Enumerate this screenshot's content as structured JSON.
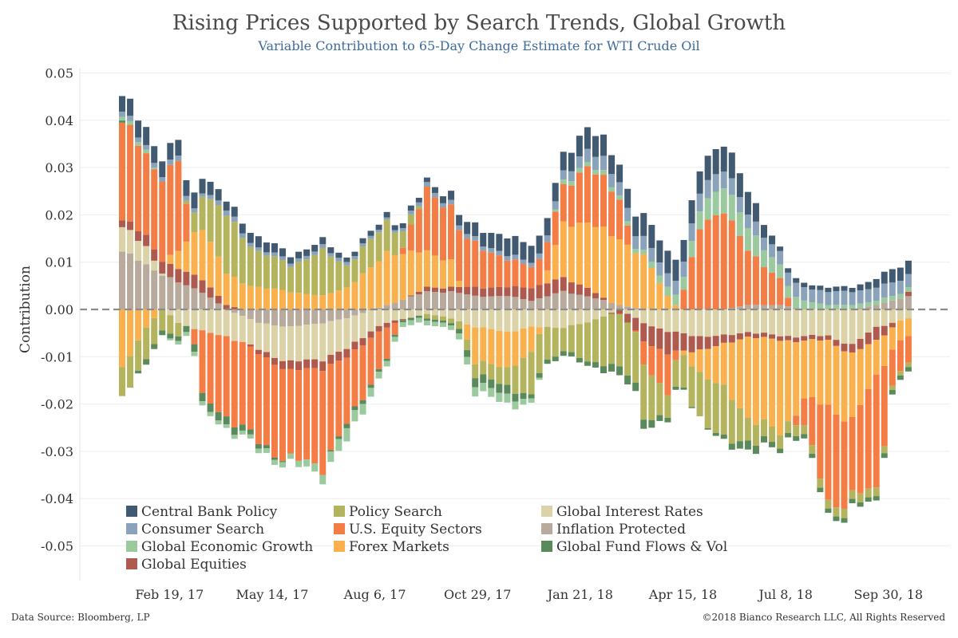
{
  "chart_data": {
    "type": "bar",
    "stacked": true,
    "title": "Rising Prices Supported by Search Trends, Global Growth",
    "subtitle": "Variable Contribution to 65-Day Change Estimate for WTI Crude Oil",
    "ylabel": "Contribution",
    "ylim": [
      -0.055,
      0.05
    ],
    "yticks": [
      0.05,
      0.04,
      0.03,
      0.02,
      0.01,
      0.0,
      -0.01,
      -0.02,
      -0.03,
      -0.04,
      -0.05
    ],
    "ytick_labels": [
      "0.05",
      "0.04",
      "0.03",
      "0.02",
      "0.01",
      "0.00",
      "-0.01",
      "-0.02",
      "-0.03",
      "-0.04",
      "-0.05"
    ],
    "xtick_labels": [
      "Feb 19, 17",
      "May 14, 17",
      "Aug 6, 17",
      "Oct 29, 17",
      "Jan 21, 18",
      "Apr 15, 18",
      "Jul 8, 18",
      "Sep 30, 18"
    ],
    "xtick_positions": [
      6.3,
      19.1,
      31.9,
      44.7,
      57.5,
      70.3,
      83.1,
      95.9
    ],
    "n_bars": 99,
    "grid": "horizontal",
    "zero_line": "dashed",
    "legend_position": "bottom-left",
    "series": [
      {
        "name": "Central Bank Policy",
        "color": "#415a72"
      },
      {
        "name": "Consumer Search",
        "color": "#8aa3bb"
      },
      {
        "name": "Global Economic Growth",
        "color": "#9bca9f"
      },
      {
        "name": "Global Fund Flows & Vol",
        "color": "#5a8a5c"
      },
      {
        "name": "Policy Search",
        "color": "#b5b45e"
      },
      {
        "name": "U.S. Equity Sectors",
        "color": "#f47c45"
      },
      {
        "name": "Forex Markets",
        "color": "#f9b04d"
      },
      {
        "name": "Global Equities",
        "color": "#ae5a4e"
      },
      {
        "name": "Global Interest Rates",
        "color": "#dbd3a7"
      },
      {
        "name": "Inflation Protected",
        "color": "#b8ab9d"
      }
    ],
    "stack_order": [
      9,
      8,
      7,
      6,
      5,
      4,
      3,
      2,
      1,
      0
    ],
    "anchors": [
      {
        "i": 0,
        "v": [
          0.0035,
          0.0012,
          0.0008,
          0.0005,
          -0.0065,
          0.022,
          -0.013,
          0.0015,
          0.0055,
          0.013
        ]
      },
      {
        "i": 3,
        "v": [
          0.004,
          0.001,
          0.0008,
          -0.0012,
          -0.007,
          0.018,
          -0.004,
          0.0025,
          0.004,
          0.01
        ]
      },
      {
        "i": 7,
        "v": [
          0.0035,
          0.0012,
          -0.0008,
          -0.001,
          -0.003,
          0.02,
          0.004,
          0.003,
          -0.003,
          0.006
        ]
      },
      {
        "i": 10,
        "v": [
          0.0035,
          0.0008,
          -0.001,
          -0.002,
          0.008,
          -0.015,
          0.012,
          0.003,
          -0.005,
          0.004
        ]
      },
      {
        "i": 13,
        "v": [
          0.002,
          0.0012,
          -0.0008,
          -0.0018,
          0.013,
          -0.018,
          0.007,
          0.001,
          -0.006,
          0.0
        ]
      },
      {
        "i": 17,
        "v": [
          0.0025,
          0.0008,
          -0.001,
          -0.001,
          0.008,
          -0.02,
          0.005,
          -0.001,
          -0.006,
          -0.003
        ]
      },
      {
        "i": 21,
        "v": [
          0.0015,
          0.0008,
          -0.0012,
          0.0,
          0.006,
          -0.02,
          0.004,
          -0.002,
          -0.008,
          -0.004
        ]
      },
      {
        "i": 25,
        "v": [
          0.0015,
          0.0008,
          -0.002,
          0.0,
          0.01,
          -0.022,
          0.003,
          -0.002,
          -0.008,
          -0.003
        ]
      },
      {
        "i": 28,
        "v": [
          0.001,
          0.0008,
          -0.003,
          -0.001,
          0.005,
          -0.015,
          0.005,
          -0.002,
          -0.007,
          -0.002
        ]
      },
      {
        "i": 33,
        "v": [
          0.0012,
          0.0005,
          -0.0012,
          -0.0005,
          0.007,
          -0.007,
          0.012,
          -0.001,
          -0.003,
          0.001
        ]
      },
      {
        "i": 38,
        "v": [
          0.001,
          0.001,
          -0.001,
          -0.0005,
          -0.001,
          0.014,
          0.008,
          0.001,
          -0.001,
          0.004
        ]
      },
      {
        "i": 41,
        "v": [
          0.002,
          0.001,
          -0.001,
          -0.0005,
          -0.001,
          0.012,
          0.006,
          0.001,
          -0.002,
          0.004
        ]
      },
      {
        "i": 44,
        "v": [
          0.003,
          0.001,
          -0.002,
          -0.002,
          -0.003,
          0.01,
          -0.008,
          0.002,
          -0.004,
          0.003
        ]
      },
      {
        "i": 48,
        "v": [
          0.004,
          0.001,
          -0.002,
          -0.002,
          -0.004,
          0.006,
          -0.008,
          0.002,
          -0.005,
          0.003
        ]
      },
      {
        "i": 51,
        "v": [
          0.004,
          0.001,
          -0.001,
          -0.001,
          -0.01,
          0.005,
          -0.006,
          0.003,
          -0.004,
          0.002
        ]
      },
      {
        "i": 55,
        "v": [
          0.004,
          0.002,
          0.001,
          -0.001,
          -0.005,
          0.008,
          0.012,
          0.003,
          -0.004,
          0.004
        ]
      },
      {
        "i": 58,
        "v": [
          0.005,
          0.003,
          0.001,
          -0.001,
          -0.009,
          0.013,
          0.015,
          0.002,
          -0.003,
          0.003
        ]
      },
      {
        "i": 62,
        "v": [
          0.004,
          0.003,
          0.001,
          -0.002,
          -0.012,
          0.009,
          0.015,
          -0.001,
          0.0,
          0.001
        ]
      },
      {
        "i": 65,
        "v": [
          0.005,
          0.003,
          0.001,
          -0.002,
          -0.012,
          -0.005,
          0.012,
          -0.004,
          -0.003,
          0.0
        ]
      },
      {
        "i": 68,
        "v": [
          0.005,
          0.003,
          0.002,
          -0.001,
          -0.005,
          -0.009,
          0.003,
          -0.005,
          -0.005,
          0.0
        ]
      },
      {
        "i": 72,
        "v": [
          0.005,
          0.004,
          0.004,
          0.0,
          -0.01,
          0.018,
          -0.005,
          -0.003,
          -0.006,
          0.0
        ]
      },
      {
        "i": 75,
        "v": [
          0.006,
          0.004,
          0.006,
          -0.001,
          -0.012,
          0.023,
          -0.01,
          -0.002,
          -0.006,
          0.0
        ]
      },
      {
        "i": 78,
        "v": [
          0.005,
          0.003,
          0.005,
          -0.002,
          -0.005,
          0.012,
          -0.018,
          -0.001,
          -0.005,
          0.001
        ]
      },
      {
        "i": 82,
        "v": [
          0.001,
          0.003,
          0.003,
          -0.001,
          -0.003,
          0.006,
          -0.021,
          -0.001,
          -0.006,
          0.001
        ]
      },
      {
        "i": 85,
        "v": [
          0.001,
          0.003,
          0.002,
          -0.001,
          -0.002,
          -0.006,
          -0.013,
          -0.001,
          -0.006,
          0.0
        ]
      },
      {
        "i": 88,
        "v": [
          0.001,
          0.003,
          0.001,
          -0.001,
          -0.002,
          -0.022,
          -0.015,
          -0.001,
          -0.006,
          0.0
        ]
      },
      {
        "i": 91,
        "v": [
          0.001,
          0.003,
          0.001,
          -0.001,
          -0.002,
          -0.017,
          -0.015,
          -0.002,
          -0.008,
          0.0
        ]
      },
      {
        "i": 94,
        "v": [
          0.002,
          0.003,
          0.001,
          -0.001,
          -0.002,
          -0.026,
          -0.008,
          -0.003,
          -0.004,
          0.001
        ]
      },
      {
        "i": 96,
        "v": [
          0.003,
          0.003,
          0.001,
          -0.001,
          -0.001,
          -0.008,
          -0.005,
          -0.001,
          -0.003,
          0.002
        ]
      },
      {
        "i": 98,
        "v": [
          0.003,
          0.003,
          0.001,
          -0.001,
          -0.001,
          -0.006,
          -0.004,
          0.001,
          -0.002,
          0.003
        ]
      }
    ]
  },
  "footer": {
    "source": "Data Source: Bloomberg, LP",
    "copyright": "©2018 Bianco Research LLC, All Rights Reserved"
  }
}
